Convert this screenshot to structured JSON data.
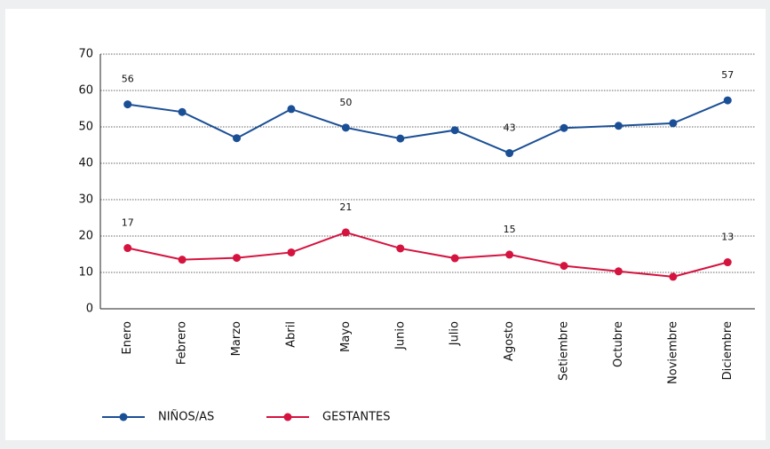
{
  "chart_data": {
    "type": "line",
    "categories": [
      "Enero",
      "Febrero",
      "Marzo",
      "Abril",
      "Mayo",
      "Junio",
      "Julio",
      "Agosto",
      "Setiembre",
      "Octubre",
      "Noviembre",
      "Diciembre"
    ],
    "series": [
      {
        "name": "NIÑOS/AS",
        "color": "#1b4f95",
        "values": [
          56.2,
          54.1,
          46.9,
          54.9,
          49.8,
          46.8,
          49.1,
          42.8,
          49.7,
          50.3,
          51.0,
          57.3
        ],
        "value_labels": [
          "56",
          null,
          null,
          null,
          "50",
          null,
          null,
          "43",
          null,
          null,
          null,
          "57"
        ]
      },
      {
        "name": "GESTANTES",
        "color": "#d5133f",
        "values": [
          16.7,
          13.5,
          14.0,
          15.5,
          21.0,
          16.6,
          13.9,
          14.9,
          11.8,
          10.3,
          8.8,
          12.8
        ],
        "value_labels": [
          "17",
          null,
          null,
          null,
          "21",
          null,
          null,
          "15",
          null,
          null,
          null,
          "13"
        ]
      }
    ],
    "ylim": [
      0,
      70
    ],
    "yticks": [
      0,
      10,
      20,
      30,
      40,
      50,
      60,
      70
    ],
    "grid": true,
    "legend": "bottom"
  }
}
